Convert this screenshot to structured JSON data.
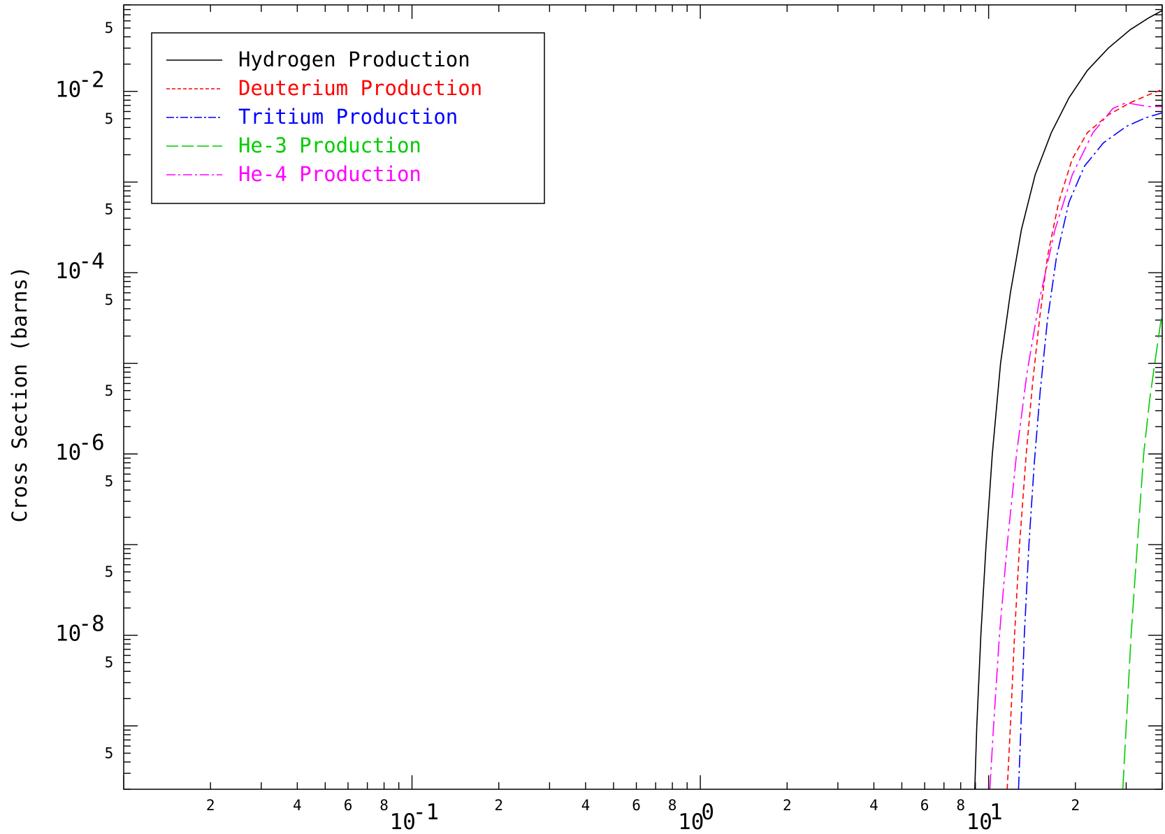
{
  "chart_data": {
    "type": "line",
    "title": "",
    "xlabel": "",
    "ylabel": "Cross Section (barns)",
    "xscale": "log",
    "yscale": "log",
    "xlim": [
      0.01,
      40
    ],
    "ylim": [
      2e-10,
      0.09
    ],
    "grid": false,
    "legend_position": "top-left",
    "x_major_ticks": [
      {
        "value": 0.1,
        "base": "10",
        "exp": "-1"
      },
      {
        "value": 1,
        "base": "10",
        "exp": "0"
      },
      {
        "value": 10,
        "base": "10",
        "exp": "1"
      }
    ],
    "x_minor_labels": [
      {
        "value": 0.02,
        "label": "2"
      },
      {
        "value": 0.04,
        "label": "4"
      },
      {
        "value": 0.06,
        "label": "6"
      },
      {
        "value": 0.08,
        "label": "8"
      },
      {
        "value": 0.2,
        "label": "2"
      },
      {
        "value": 0.4,
        "label": "4"
      },
      {
        "value": 0.6,
        "label": "6"
      },
      {
        "value": 0.8,
        "label": "8"
      },
      {
        "value": 2,
        "label": "2"
      },
      {
        "value": 4,
        "label": "4"
      },
      {
        "value": 6,
        "label": "6"
      },
      {
        "value": 8,
        "label": "8"
      },
      {
        "value": 20,
        "label": "2"
      }
    ],
    "y_major_ticks": [
      {
        "value": 0.01,
        "base": "10",
        "exp": "-2"
      },
      {
        "value": 0.0001,
        "base": "10",
        "exp": "-4"
      },
      {
        "value": 1e-06,
        "base": "10",
        "exp": "-6"
      },
      {
        "value": 1e-08,
        "base": "10",
        "exp": "-8"
      }
    ],
    "y_minor_labels": [
      {
        "value": 0.05,
        "label": "5"
      },
      {
        "value": 0.005,
        "label": "5"
      },
      {
        "value": 0.0005,
        "label": "5"
      },
      {
        "value": 5e-05,
        "label": "5"
      },
      {
        "value": 5e-06,
        "label": "5"
      },
      {
        "value": 5e-07,
        "label": "5"
      },
      {
        "value": 5e-08,
        "label": "5"
      },
      {
        "value": 5e-09,
        "label": "5"
      },
      {
        "value": 5e-10,
        "label": "5"
      }
    ],
    "series": [
      {
        "name": "Hydrogen Production",
        "color": "#000000",
        "dash": "",
        "x": [
          8.95,
          9.1,
          9.4,
          9.8,
          10.3,
          11.0,
          11.9,
          13.0,
          14.5,
          16.5,
          19.0,
          22.0,
          26.0,
          31.0,
          36.0,
          40.0
        ],
        "y": [
          2e-10,
          1e-09,
          1e-08,
          1e-07,
          1e-06,
          1e-05,
          6e-05,
          0.0003,
          0.0012,
          0.0035,
          0.0085,
          0.017,
          0.03,
          0.048,
          0.065,
          0.078
        ]
      },
      {
        "name": "Deuterium Production",
        "color": "#ff0000",
        "dash": "8,5",
        "x": [
          11.6,
          11.9,
          12.3,
          12.8,
          13.5,
          14.2,
          15.0,
          16.0,
          17.5,
          19.5,
          22.0,
          26.0,
          31.0,
          36.0,
          40.0
        ],
        "y": [
          2e-10,
          1e-09,
          1e-08,
          1e-07,
          1e-06,
          6e-06,
          3e-05,
          0.00015,
          0.0006,
          0.0018,
          0.0035,
          0.0055,
          0.0075,
          0.0092,
          0.0105
        ]
      },
      {
        "name": "Tritium Production",
        "color": "#0000ff",
        "dash": "18,5,3,5",
        "x": [
          12.7,
          12.95,
          13.3,
          13.8,
          14.4,
          15.1,
          16.0,
          17.2,
          19.0,
          21.5,
          25.0,
          30.0,
          35.0,
          40.0
        ],
        "y": [
          2e-10,
          1e-09,
          1e-08,
          1e-07,
          8e-07,
          5e-06,
          3e-05,
          0.00015,
          0.0006,
          0.0015,
          0.0027,
          0.0041,
          0.0051,
          0.0058
        ]
      },
      {
        "name": "He-3 Production",
        "color": "#00cc00",
        "dash": "28,8",
        "x": [
          29.2,
          30.0,
          31.2,
          32.8,
          34.5,
          36.2,
          38.0,
          39.5,
          40.0
        ],
        "y": [
          2e-10,
          1e-09,
          1e-08,
          1e-07,
          1e-06,
          4e-06,
          1.2e-05,
          2.8e-05,
          3.5e-05
        ]
      },
      {
        "name": "He-4 Production",
        "color": "#ff00ff",
        "dash": "22,6,4,6",
        "x": [
          10.1,
          10.4,
          10.9,
          11.6,
          12.5,
          13.6,
          15.0,
          17.0,
          19.5,
          23.0,
          27.0,
          30.0,
          33.0,
          36.0,
          40.0
        ],
        "y": [
          2e-10,
          1e-09,
          1e-08,
          1e-07,
          1e-06,
          8e-06,
          5e-05,
          0.0003,
          0.0012,
          0.0035,
          0.0065,
          0.0075,
          0.0071,
          0.0068,
          0.0068
        ]
      }
    ]
  }
}
